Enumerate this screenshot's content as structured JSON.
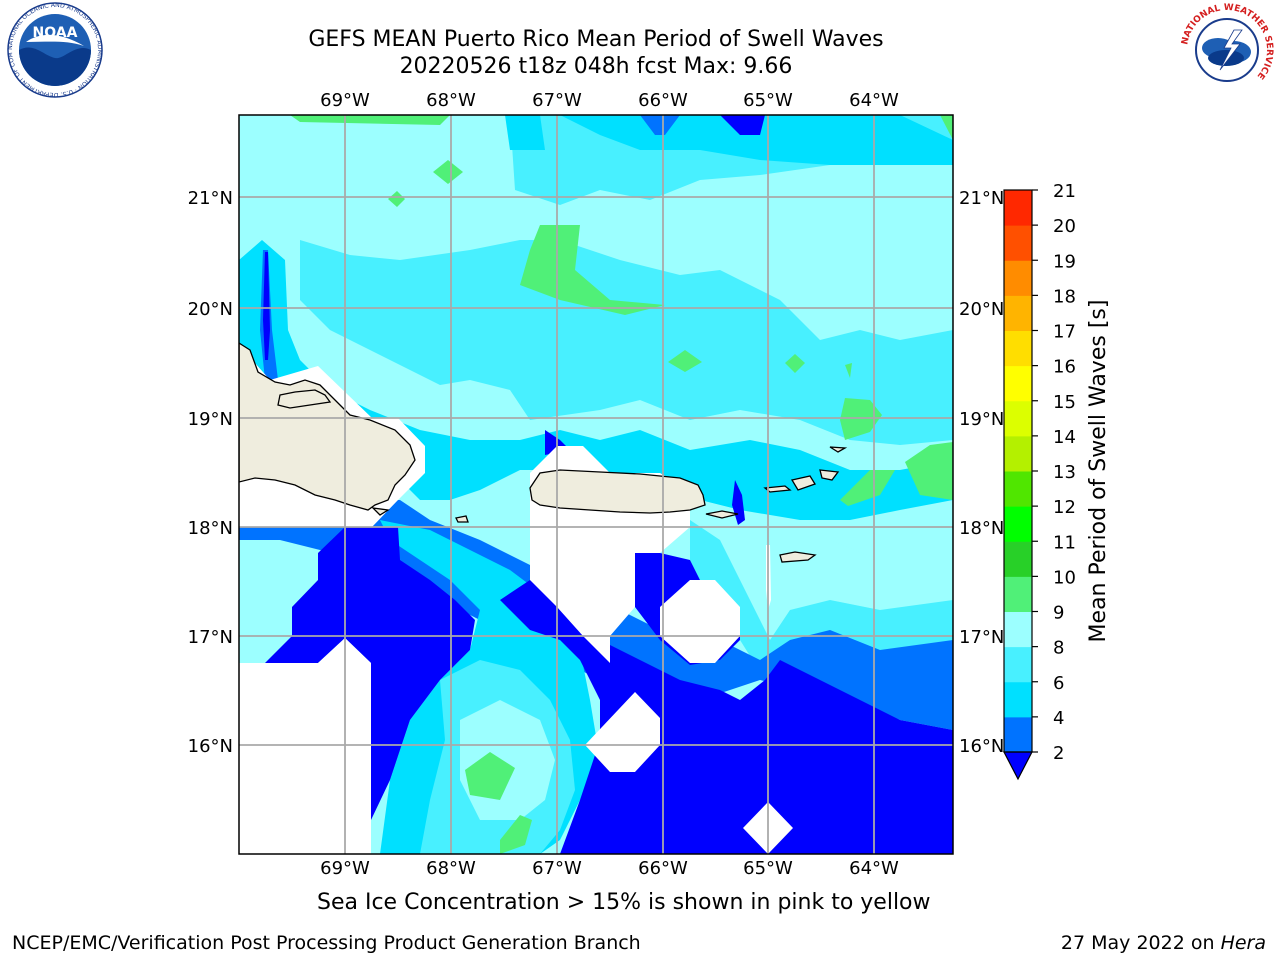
{
  "title_line1": "GEFS MEAN Puerto Rico Mean Period of Swell Waves",
  "title_line2": "20220526 t18z 048h fcst   Max: 9.66",
  "longitude_labels": [
    "69°W",
    "68°W",
    "67°W",
    "66°W",
    "65°W",
    "64°W"
  ],
  "latitude_labels": [
    "21°N",
    "20°N",
    "19°N",
    "18°N",
    "17°N",
    "16°N"
  ],
  "colorbar": {
    "label": "Mean Period of Swell Waves [s]",
    "ticks": [
      "2",
      "4",
      "6",
      "8",
      "9",
      "10",
      "11",
      "12",
      "13",
      "14",
      "15",
      "16",
      "17",
      "18",
      "19",
      "20",
      "21"
    ],
    "colors": [
      "#0000ff",
      "#0073ff",
      "#00e0ff",
      "#48f0ff",
      "#9cffff",
      "#50f078",
      "#28d028",
      "#00ff00",
      "#50e600",
      "#b4f000",
      "#dcff00",
      "#ffff00",
      "#ffde00",
      "#ffb400",
      "#ff8c00",
      "#ff5000",
      "#ff2800",
      "#ff0000"
    ]
  },
  "ice_note": "Sea Ice Concentration > 15% is shown in pink to yellow",
  "footer_left": "NCEP/EMC/Verification Post Processing Product Generation Branch",
  "footer_right_prefix": "27 May 2022 on ",
  "footer_right_host": "Hera",
  "logos": {
    "noaa": {
      "text": "NOAA",
      "ring_text": "NATIONAL OCEANIC AND ATMOSPHERIC ADMINISTRATION · U.S. DEPARTMENT OF COMMERCE"
    },
    "nws": {
      "ring_text": "NATIONAL WEATHER SERVICE"
    }
  },
  "map_colors": {
    "land": "#efedde",
    "deep_blue": "#0000ff",
    "blue": "#0073ff",
    "cyan": "#00e0ff",
    "light_cyan": "#48f0ff",
    "pale_cyan": "#9cffff",
    "green": "#50f078",
    "no_data": "#ffffff"
  }
}
